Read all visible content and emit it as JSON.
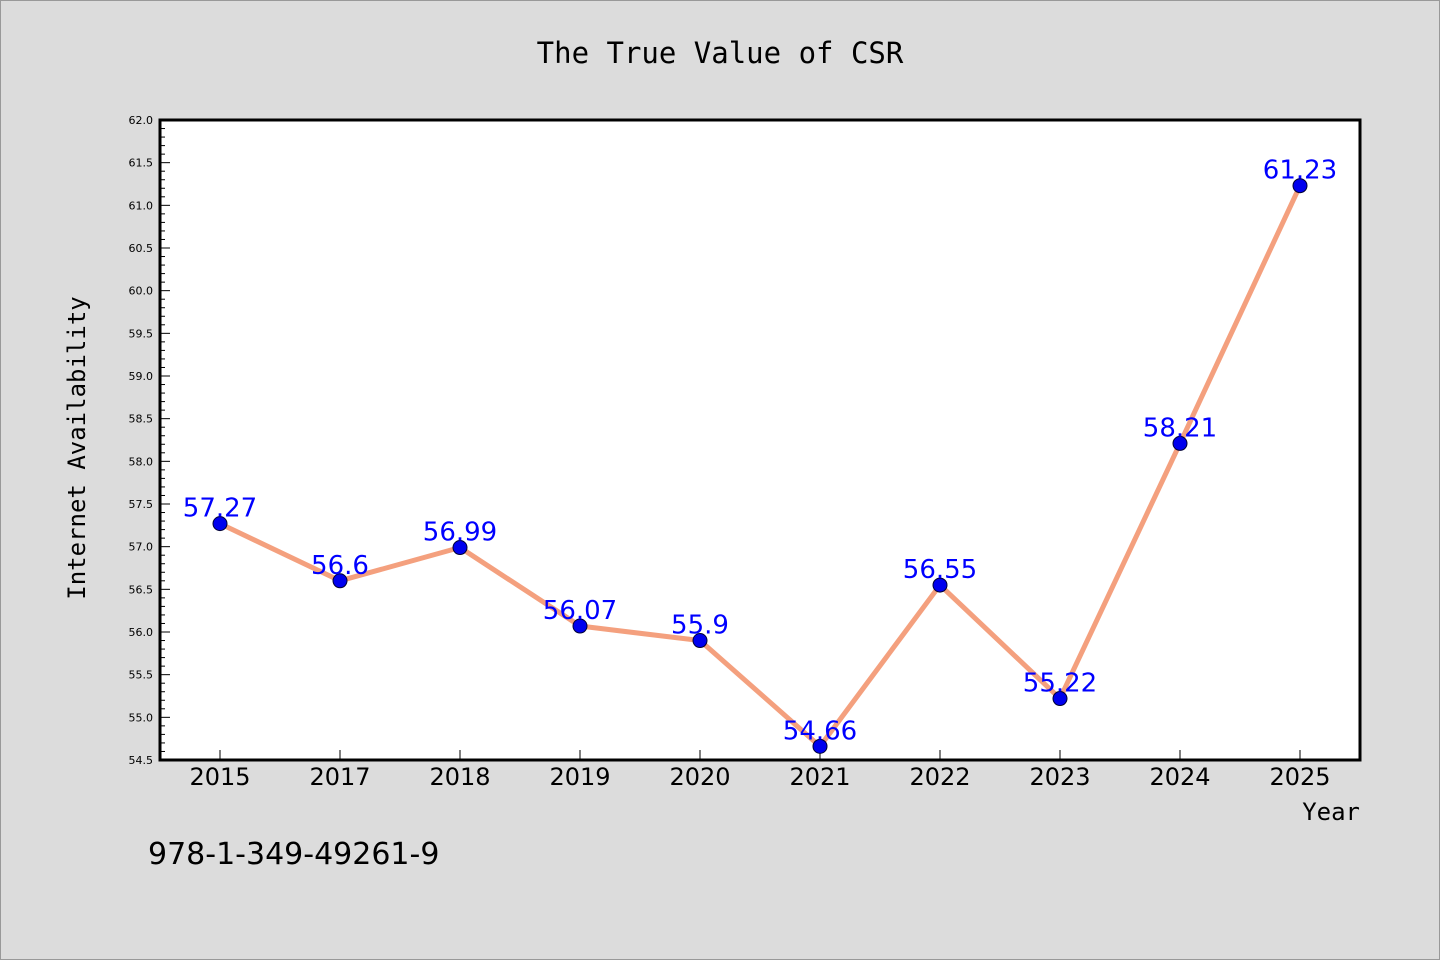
{
  "footnote": "978-1-349-49261-9",
  "colors": {
    "background": "#dcdcdc",
    "plot_background": "#ffffff",
    "line": "#f4a07e",
    "marker": "#0000ee",
    "data_label": "#0000ff"
  },
  "chart_data": {
    "type": "line",
    "title": "The True Value of CSR",
    "xlabel": "Year",
    "ylabel": "Internet Availability",
    "categories": [
      "2015",
      "2017",
      "2018",
      "2019",
      "2020",
      "2021",
      "2022",
      "2023",
      "2024",
      "2025"
    ],
    "series": [
      {
        "values": [
          57.27,
          56.6,
          56.99,
          56.07,
          55.9,
          54.66,
          56.55,
          55.22,
          58.21,
          61.23
        ],
        "labels": [
          "57.27",
          "56.6",
          "56.99",
          "56.07",
          "55.9",
          "54.66",
          "56.55",
          "55.22",
          "58.21",
          "61.23"
        ]
      }
    ],
    "ylim": [
      54.5,
      62.0
    ],
    "yticks": [
      "54.5",
      "55.0",
      "55.5",
      "56.0",
      "56.5",
      "57.0",
      "57.5",
      "58.0",
      "58.5",
      "59.0",
      "59.5",
      "60.0",
      "60.5",
      "61.0",
      "61.5",
      "62.0"
    ],
    "grid": false,
    "legend": "none"
  }
}
